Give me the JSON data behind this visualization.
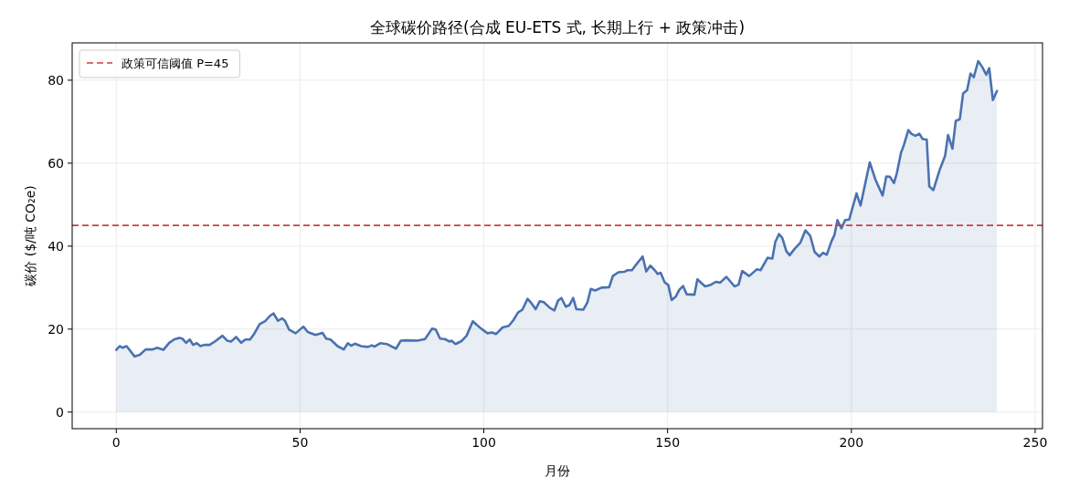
{
  "chart_data": {
    "type": "area",
    "title": "全球碳价路径(合成 EU-ETS 式, 长期上行 + 政策冲击)",
    "xlabel": "月份",
    "ylabel": "碳价 ($/吨 CO₂e)",
    "x": [
      0,
      0.9,
      1.7,
      2.8,
      5.0,
      6.4,
      8.0,
      9.9,
      11.1,
      12.8,
      14.4,
      15.7,
      17.1,
      18.0,
      19.0,
      20.0,
      20.9,
      21.9,
      22.9,
      23.9,
      25.4,
      26.8,
      28.9,
      30.2,
      31.2,
      32.6,
      34.0,
      35.1,
      36.4,
      37.6,
      39.0,
      40.5,
      41.7,
      42.8,
      44.0,
      45.1,
      45.9,
      47.0,
      48.8,
      50.9,
      52.1,
      54.2,
      56.1,
      57.1,
      58.3,
      60.2,
      61.9,
      63.0,
      63.9,
      64.9,
      66.6,
      68.5,
      69.5,
      70.3,
      71.8,
      73.6,
      76.1,
      77.4,
      79.0,
      81.9,
      84.0,
      85.9,
      86.9,
      88.1,
      89.4,
      90.6,
      91.2,
      92.3,
      93.9,
      95.3,
      97.0,
      98.1,
      99.3,
      101.0,
      102.2,
      103.3,
      105.1,
      106.8,
      108.0,
      109.3,
      110.5,
      111.9,
      113.0,
      114.1,
      115.2,
      116.3,
      118.0,
      119.2,
      120.2,
      121.1,
      122.3,
      123.3,
      124.3,
      125.2,
      127.1,
      128.2,
      129.1,
      130.3,
      132.0,
      134.1,
      135.1,
      136.6,
      138.2,
      139.1,
      140.3,
      141.4,
      143.2,
      144.2,
      145.3,
      146.7,
      147.3,
      148.1,
      149.2,
      150.2,
      151.1,
      152.2,
      153.2,
      154.2,
      155.2,
      157.3,
      158.1,
      160.2,
      161.8,
      163.1,
      164.3,
      166.0,
      168.2,
      169.3,
      170.3,
      172.2,
      174.3,
      175.3,
      177.2,
      178.5,
      179.3,
      180.3,
      181.2,
      182.3,
      183.2,
      184.6,
      186.1,
      187.5,
      188.8,
      190.0,
      191.3,
      192.3,
      193.3,
      194.6,
      195.4,
      196.2,
      197.3,
      198.3,
      199.4,
      201.4,
      202.5,
      205.0,
      206.6,
      208.5,
      209.5,
      210.5,
      211.6,
      212.4,
      213.5,
      214.3,
      215.5,
      216.3,
      217.4,
      218.5,
      219.4,
      220.5,
      221.2,
      222.3,
      224.0,
      225.5,
      226.3,
      227.5,
      228.4,
      229.5,
      230.4,
      231.5,
      232.4,
      233.3,
      234.5,
      235.6,
      236.7,
      237.5,
      238.5,
      239.6
    ],
    "series": [
      {
        "color": "#4a72b0",
        "values": [
          15.0,
          15.9,
          15.5,
          15.9,
          13.4,
          13.8,
          15.1,
          15.1,
          15.5,
          15.0,
          16.7,
          17.5,
          17.9,
          17.7,
          16.7,
          17.5,
          16.2,
          16.6,
          15.9,
          16.2,
          16.2,
          17.0,
          18.4,
          17.2,
          17.0,
          18.1,
          16.7,
          17.5,
          17.5,
          19.0,
          21.2,
          21.9,
          23.1,
          23.8,
          22.0,
          22.6,
          22.0,
          19.9,
          19.0,
          20.6,
          19.3,
          18.6,
          19.1,
          17.7,
          17.5,
          15.9,
          15.1,
          16.6,
          16.0,
          16.5,
          15.9,
          15.7,
          16.1,
          15.8,
          16.6,
          16.4,
          15.3,
          17.2,
          17.3,
          17.2,
          17.6,
          20.1,
          19.9,
          17.7,
          17.6,
          17.0,
          17.2,
          16.4,
          17.1,
          18.4,
          21.9,
          21.0,
          20.1,
          19.0,
          19.2,
          18.8,
          20.4,
          20.8,
          22.1,
          24.0,
          24.7,
          27.3,
          26.2,
          24.8,
          26.7,
          26.5,
          25.1,
          24.5,
          26.9,
          27.5,
          25.4,
          25.8,
          27.5,
          24.8,
          24.7,
          26.5,
          29.7,
          29.3,
          30.0,
          30.1,
          32.8,
          33.7,
          33.8,
          34.2,
          34.2,
          35.5,
          37.5,
          33.9,
          35.3,
          34.0,
          33.3,
          33.6,
          31.3,
          30.6,
          27.0,
          27.8,
          29.5,
          30.4,
          28.4,
          28.3,
          32.0,
          30.3,
          30.7,
          31.4,
          31.2,
          32.6,
          30.3,
          30.7,
          34.0,
          32.8,
          34.4,
          34.2,
          37.2,
          37.0,
          41.0,
          42.9,
          42.0,
          38.8,
          37.8,
          39.4,
          40.8,
          43.8,
          42.5,
          38.6,
          37.5,
          38.4,
          37.9,
          41.2,
          42.7,
          46.3,
          44.3,
          46.3,
          46.4,
          52.7,
          49.8,
          60.2,
          55.9,
          52.2,
          56.8,
          56.7,
          55.2,
          57.7,
          62.5,
          64.4,
          68.0,
          67.1,
          66.6,
          67.1,
          65.8,
          65.7,
          54.4,
          53.5,
          58.3,
          61.8,
          66.8,
          63.5,
          70.2,
          70.6,
          76.8,
          77.6,
          81.6,
          80.7,
          84.6,
          83.2,
          81.3,
          82.9,
          75.2,
          77.4
        ]
      }
    ],
    "xlim": [
      -12,
      252
    ],
    "ylim": [
      -4,
      89
    ],
    "xticks": [
      0,
      50,
      100,
      150,
      200,
      250
    ],
    "yticks": [
      0,
      20,
      40,
      60,
      80
    ],
    "grid": true,
    "legend": "top left",
    "ref_lines": [
      {
        "axis": "y",
        "value": 45,
        "label": "政策可信阈值 P=45",
        "color": "#cc3f3f",
        "line_style": "dashed"
      }
    ]
  }
}
